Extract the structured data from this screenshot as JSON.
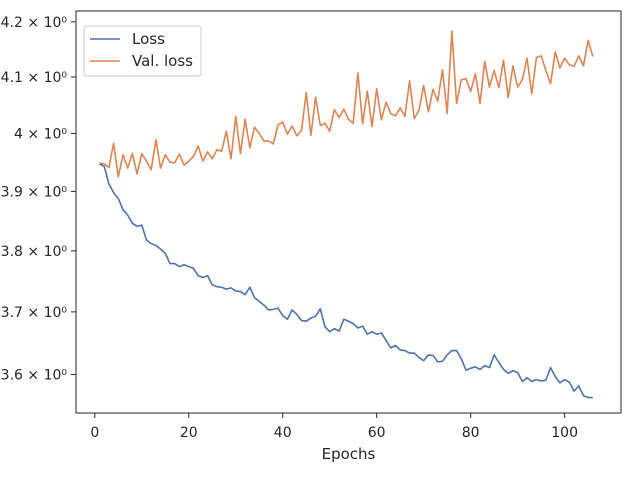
{
  "chart_data": {
    "type": "line",
    "title": "",
    "xlabel": "Epochs",
    "ylabel": "",
    "xlim": [
      -4,
      112
    ],
    "ylim": [
      3.54,
      4.22
    ],
    "y_scale": "log",
    "grid": false,
    "legend_position": "top-left",
    "x_ticks": [
      0,
      20,
      40,
      60,
      80,
      100
    ],
    "x_tick_labels": [
      "0",
      "20",
      "40",
      "60",
      "80",
      "100"
    ],
    "y_ticks": [
      3.6,
      3.7,
      3.8,
      3.9,
      4.0,
      4.1,
      4.2
    ],
    "y_tick_labels": [
      "3.6 × 10⁰",
      "3.7 × 10⁰",
      "3.8 × 10⁰",
      "3.9 × 10⁰",
      "4 × 10⁰",
      "4.1 × 10⁰",
      "4.2 × 10⁰"
    ],
    "x": [
      1,
      2,
      3,
      4,
      5,
      6,
      7,
      8,
      9,
      10,
      11,
      12,
      13,
      14,
      15,
      16,
      17,
      18,
      19,
      20,
      21,
      22,
      23,
      24,
      25,
      26,
      27,
      28,
      29,
      30,
      31,
      32,
      33,
      34,
      35,
      36,
      37,
      38,
      39,
      40,
      41,
      42,
      43,
      44,
      45,
      46,
      47,
      48,
      49,
      50,
      51,
      52,
      53,
      54,
      55,
      56,
      57,
      58,
      59,
      60,
      61,
      62,
      63,
      64,
      65,
      66,
      67,
      68,
      69,
      70,
      71,
      72,
      73,
      74,
      75,
      76,
      77,
      78,
      79,
      80,
      81,
      82,
      83,
      84,
      85,
      86,
      87,
      88,
      89,
      90,
      91,
      92,
      93,
      94,
      95,
      96,
      97,
      98,
      99,
      100,
      101,
      102,
      103,
      104,
      105,
      106
    ],
    "series": [
      {
        "name": "Loss",
        "color": "#4c72b0",
        "values": [
          3.947,
          3.943,
          3.913,
          3.898,
          3.888,
          3.869,
          3.86,
          3.846,
          3.841,
          3.843,
          3.818,
          3.812,
          3.809,
          3.803,
          3.796,
          3.779,
          3.779,
          3.774,
          3.777,
          3.774,
          3.771,
          3.759,
          3.756,
          3.759,
          3.744,
          3.741,
          3.74,
          3.737,
          3.739,
          3.734,
          3.733,
          3.728,
          3.74,
          3.723,
          3.717,
          3.711,
          3.703,
          3.704,
          3.706,
          3.694,
          3.688,
          3.703,
          3.696,
          3.686,
          3.685,
          3.69,
          3.693,
          3.705,
          3.676,
          3.668,
          3.673,
          3.669,
          3.688,
          3.685,
          3.681,
          3.674,
          3.677,
          3.664,
          3.668,
          3.664,
          3.666,
          3.654,
          3.642,
          3.646,
          3.639,
          3.638,
          3.634,
          3.634,
          3.627,
          3.622,
          3.631,
          3.63,
          3.62,
          3.621,
          3.631,
          3.638,
          3.638,
          3.625,
          3.607,
          3.61,
          3.612,
          3.608,
          3.614,
          3.611,
          3.631,
          3.619,
          3.608,
          3.602,
          3.606,
          3.603,
          3.589,
          3.595,
          3.589,
          3.592,
          3.59,
          3.591,
          3.611,
          3.597,
          3.587,
          3.592,
          3.588,
          3.574,
          3.582,
          3.567,
          3.564,
          3.564
        ]
      },
      {
        "name": "Val. loss",
        "color": "#dd8452",
        "values": [
          3.949,
          3.947,
          3.941,
          3.983,
          3.925,
          3.963,
          3.94,
          3.965,
          3.93,
          3.965,
          3.952,
          3.937,
          3.989,
          3.94,
          3.963,
          3.95,
          3.949,
          3.964,
          3.945,
          3.952,
          3.96,
          3.978,
          3.952,
          3.968,
          3.956,
          3.972,
          3.969,
          4.004,
          3.956,
          4.03,
          3.965,
          4.025,
          3.975,
          4.011,
          4.0,
          3.987,
          3.987,
          3.982,
          4.015,
          4.02,
          3.999,
          4.013,
          3.996,
          4.005,
          4.072,
          3.997,
          4.064,
          4.014,
          4.018,
          4.004,
          4.042,
          4.028,
          4.043,
          4.025,
          4.018,
          4.107,
          4.017,
          4.075,
          4.012,
          4.079,
          4.024,
          4.055,
          4.035,
          4.031,
          4.045,
          4.03,
          4.093,
          4.026,
          4.041,
          4.085,
          4.038,
          4.078,
          4.057,
          4.113,
          4.035,
          4.183,
          4.053,
          4.095,
          4.097,
          4.074,
          4.106,
          4.053,
          4.128,
          4.082,
          4.112,
          4.081,
          4.13,
          4.063,
          4.12,
          4.082,
          4.095,
          4.134,
          4.07,
          4.135,
          4.138,
          4.112,
          4.088,
          4.145,
          4.116,
          4.134,
          4.122,
          4.119,
          4.138,
          4.12,
          4.166,
          4.137
        ]
      }
    ]
  }
}
